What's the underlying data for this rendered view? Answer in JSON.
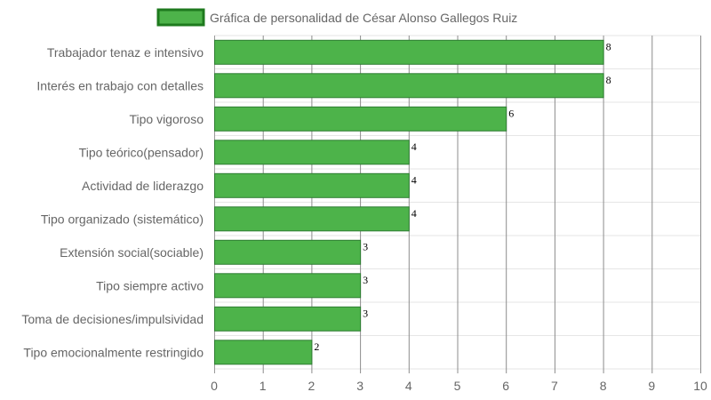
{
  "chart_data": {
    "type": "bar",
    "orientation": "horizontal",
    "legend": {
      "position": "top",
      "label": "Gráfica de personalidad de César Alonso Gallegos Ruiz"
    },
    "categories": [
      "Trabajador tenaz e intensivo",
      "Interés en trabajo con detalles",
      "Tipo vigoroso",
      "Tipo teórico(pensador)",
      "Actividad de liderazgo",
      "Tipo organizado (sistemático)",
      "Extensión social(sociable)",
      "Tipo siempre activo",
      "Toma de decisiones/impulsividad",
      "Tipo emocionalmente restringido"
    ],
    "series": [
      {
        "name": "Gráfica de personalidad de César Alonso Gallegos Ruiz",
        "values": [
          8,
          8,
          6,
          4,
          4,
          4,
          3,
          3,
          3,
          2
        ]
      }
    ],
    "xlim": [
      0,
      10
    ],
    "xticks": [
      "0",
      "1",
      "2",
      "3",
      "4",
      "5",
      "6",
      "7",
      "8",
      "9",
      "10"
    ],
    "grid": true,
    "data_labels": true,
    "colors": {
      "bar_fill": "#4db34a",
      "bar_border": "#2e7d32",
      "legend_border": "#1e7a1e",
      "grid": "#e6e6e6",
      "value_grid": "#8c8c8c"
    }
  }
}
